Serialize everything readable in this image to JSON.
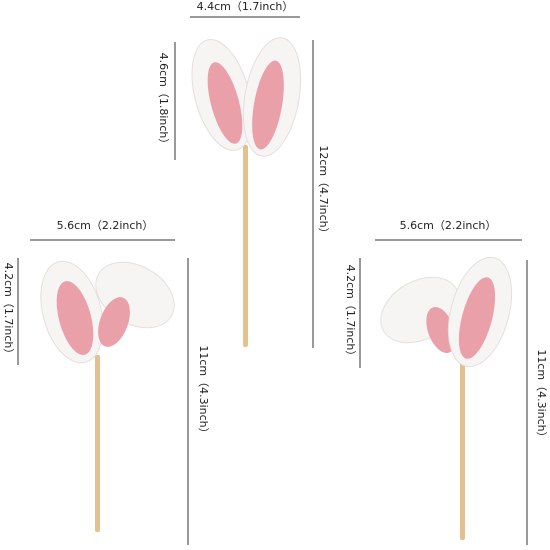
{
  "dimensions": {
    "top": {
      "width": "4.4cm（1.7inch）",
      "ear_height": "4.6cm（1.8inch）",
      "total_height": "12cm（4.7inch）"
    },
    "left": {
      "width": "5.6cm（2.2inch）",
      "ear_height": "4.2cm（1.7inch）",
      "total_height": "11cm（4.3inch）"
    },
    "right": {
      "width": "5.6cm（2.2inch）",
      "ear_height": "4.2cm（1.7inch）",
      "total_height": "11cm（4.3inch）"
    }
  }
}
